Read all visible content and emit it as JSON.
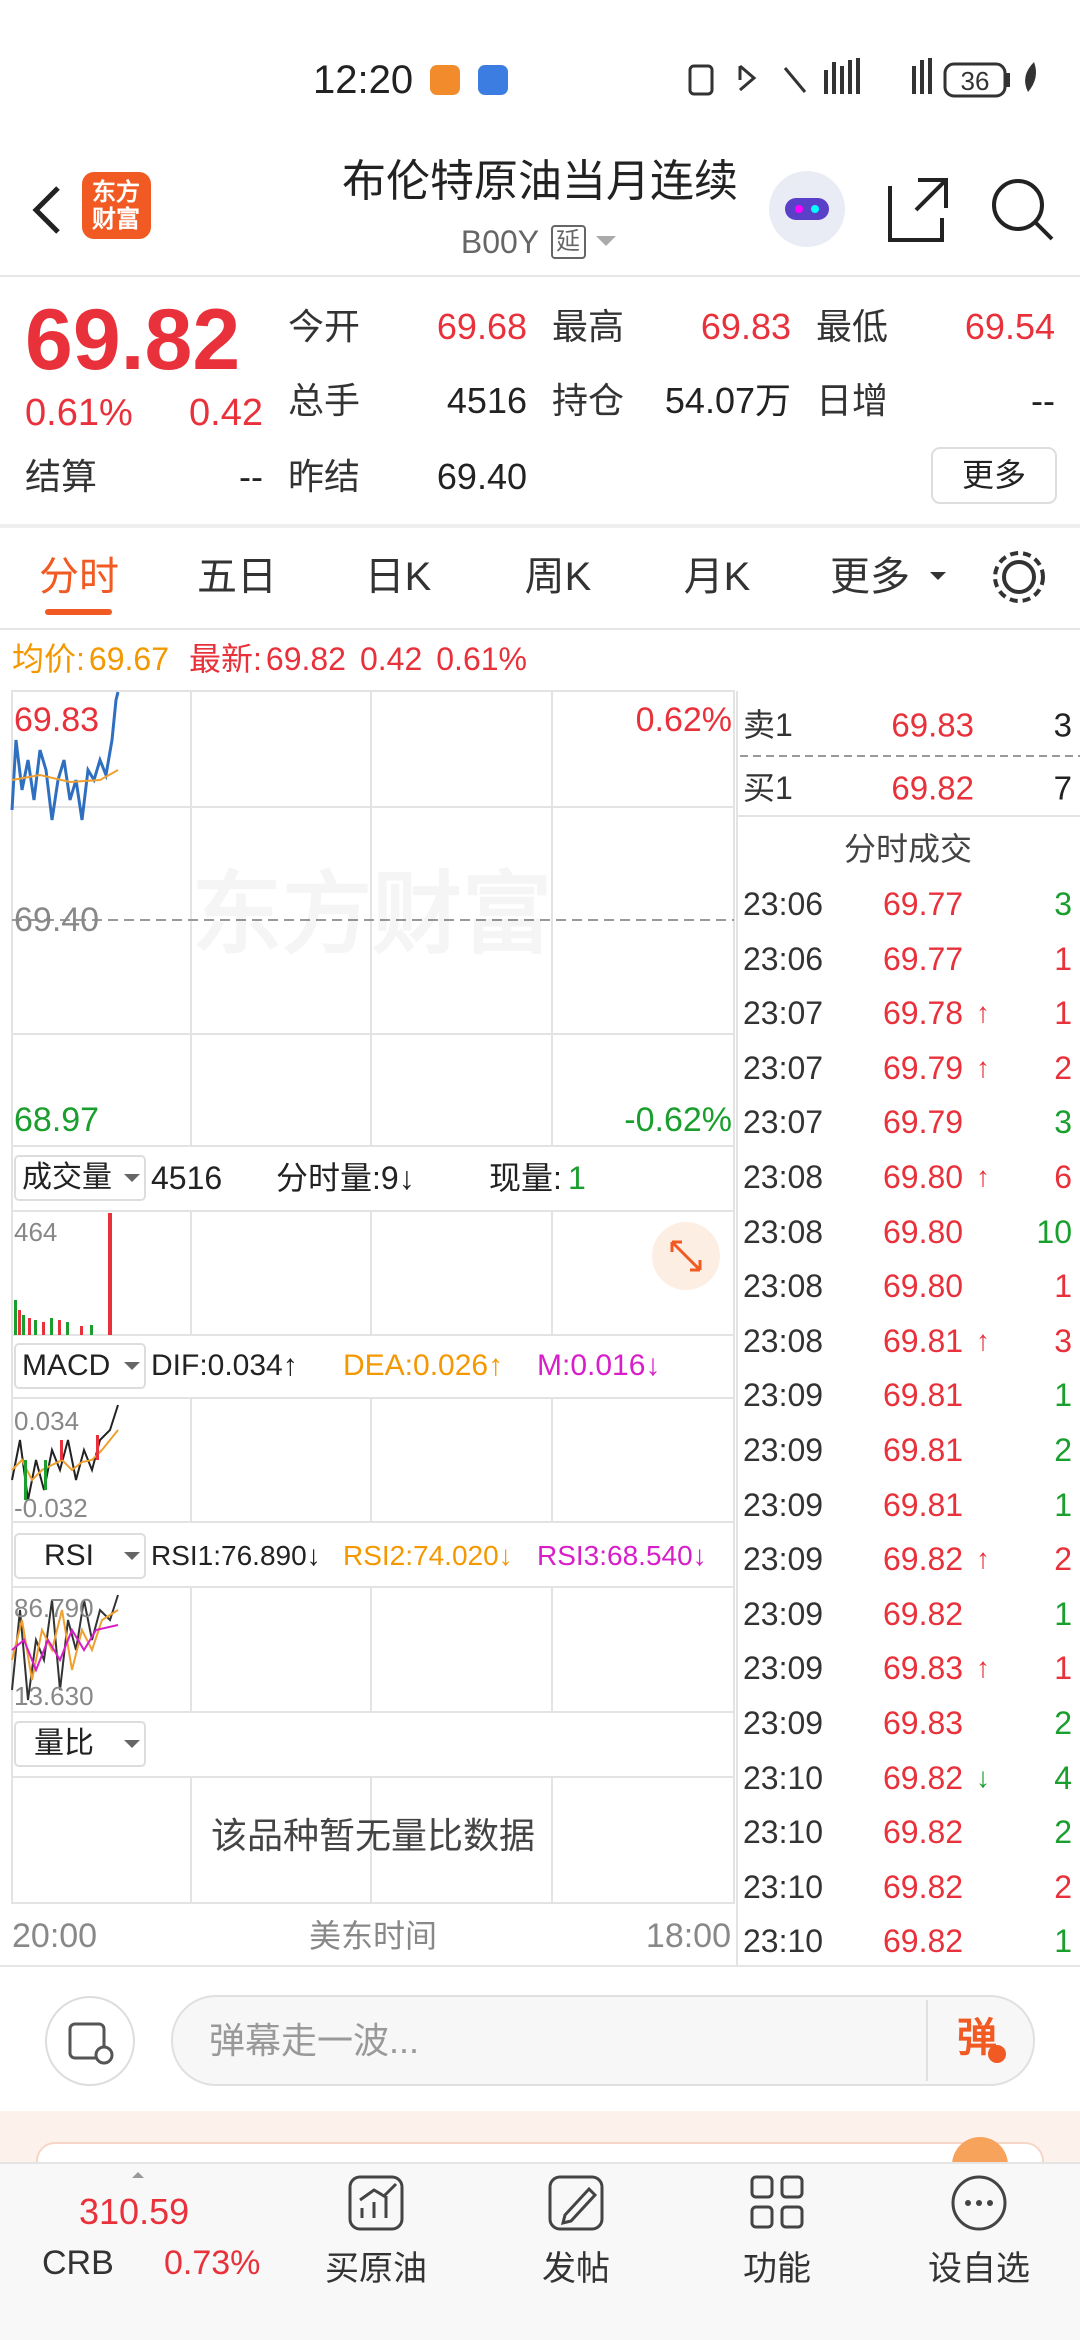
{
  "status_bar": {
    "time": "12:20",
    "battery": "36"
  },
  "header": {
    "logo_line1": "东方",
    "logo_line2": "财富",
    "title": "布伦特原油当月连续",
    "code": "B00Y",
    "tag": "延"
  },
  "quote": {
    "price": "69.82",
    "change_pct": "0.61%",
    "change": "0.42",
    "fields": [
      {
        "label": "今开",
        "value": "69.68",
        "color": "#e8313a"
      },
      {
        "label": "最高",
        "value": "69.83",
        "color": "#e8313a"
      },
      {
        "label": "最低",
        "value": "69.54",
        "color": "#e8313a"
      },
      {
        "label": "总手",
        "value": "4516",
        "color": "#222222"
      },
      {
        "label": "持仓",
        "value": "54.07万",
        "color": "#222222"
      },
      {
        "label": "日增",
        "value": "--",
        "color": "#222222"
      },
      {
        "label": "结算",
        "value": "--",
        "color": "#222222"
      },
      {
        "label": "昨结",
        "value": "69.40",
        "color": "#222222"
      }
    ],
    "more_button": "更多"
  },
  "tabs": [
    "分时",
    "五日",
    "日K",
    "周K",
    "月K",
    "更多"
  ],
  "info_line": {
    "avg_label": "均价:",
    "avg": "69.67",
    "latest_label": "最新:",
    "latest": "69.82",
    "change": "0.42",
    "pct": "0.61%"
  },
  "chart": {
    "y_top": "69.83",
    "y_mid": "69.40",
    "y_bottom": "68.97",
    "pct_top": "0.62%",
    "pct_bottom": "-0.62%",
    "watermark": "东方财富"
  },
  "volume": {
    "selector": "成交量",
    "total": "4516",
    "tick_volume": "分时量:9↓",
    "current_label": "现量:",
    "current": "1",
    "max": "464"
  },
  "macd": {
    "selector": "MACD",
    "dif": "DIF:0.034↑",
    "dea": "DEA:0.026↑",
    "m": "M:0.016↓",
    "top": "0.034",
    "bottom": "-0.032"
  },
  "rsi": {
    "selector": "RSI",
    "rsi1": "RSI1:76.890↓",
    "rsi2": "RSI2:74.020↓",
    "rsi3": "RSI3:68.540↓",
    "top": "86.790",
    "bottom": "13.630"
  },
  "ratio": {
    "selector": "量比",
    "empty": "该品种暂无量比数据"
  },
  "x_axis": {
    "start": "20:00",
    "mid": "美东时间",
    "end": "18:00"
  },
  "order_book": [
    {
      "label": "卖1",
      "price": "69.83",
      "qty": "3"
    },
    {
      "label": "买1",
      "price": "69.82",
      "qty": "7"
    }
  ],
  "trades_title": "分时成交",
  "trades": [
    {
      "time": "23:06",
      "price": "69.77",
      "qty": "3",
      "qty_color": "#1a9e2e"
    },
    {
      "time": "23:06",
      "price": "69.77",
      "qty": "1",
      "qty_color": "#e8313a"
    },
    {
      "time": "23:07",
      "price": "69.78",
      "arrow": "↑",
      "qty": "1",
      "qty_color": "#e8313a"
    },
    {
      "time": "23:07",
      "price": "69.79",
      "arrow": "↑",
      "qty": "2",
      "qty_color": "#e8313a"
    },
    {
      "time": "23:07",
      "price": "69.79",
      "qty": "3",
      "qty_color": "#1a9e2e"
    },
    {
      "time": "23:08",
      "price": "69.80",
      "arrow": "↑",
      "qty": "6",
      "qty_color": "#e8313a"
    },
    {
      "time": "23:08",
      "price": "69.80",
      "qty": "10",
      "qty_color": "#1a9e2e"
    },
    {
      "time": "23:08",
      "price": "69.80",
      "qty": "1",
      "qty_color": "#e8313a"
    },
    {
      "time": "23:08",
      "price": "69.81",
      "arrow": "↑",
      "qty": "3",
      "qty_color": "#e8313a"
    },
    {
      "time": "23:09",
      "price": "69.81",
      "qty": "1",
      "qty_color": "#1a9e2e"
    },
    {
      "time": "23:09",
      "price": "69.81",
      "qty": "2",
      "qty_color": "#1a9e2e"
    },
    {
      "time": "23:09",
      "price": "69.81",
      "qty": "1",
      "qty_color": "#1a9e2e"
    },
    {
      "time": "23:09",
      "price": "69.82",
      "arrow": "↑",
      "qty": "2",
      "qty_color": "#e8313a"
    },
    {
      "time": "23:09",
      "price": "69.82",
      "qty": "1",
      "qty_color": "#1a9e2e"
    },
    {
      "time": "23:09",
      "price": "69.83",
      "arrow": "↑",
      "qty": "1",
      "qty_color": "#e8313a"
    },
    {
      "time": "23:09",
      "price": "69.83",
      "qty": "2",
      "qty_color": "#1a9e2e"
    },
    {
      "time": "23:10",
      "price": "69.82",
      "arrow": "↓",
      "qty": "4",
      "qty_color": "#1a9e2e"
    },
    {
      "time": "23:10",
      "price": "69.82",
      "qty": "2",
      "qty_color": "#1a9e2e"
    },
    {
      "time": "23:10",
      "price": "69.82",
      "qty": "2",
      "qty_color": "#e8313a"
    },
    {
      "time": "23:10",
      "price": "69.82",
      "qty": "1",
      "qty_color": "#1a9e2e"
    }
  ],
  "comment_bar": {
    "placeholder": "弹幕走一波...",
    "button": "弹"
  },
  "bottom_nav": {
    "index_value": "310.59",
    "index_name": "CRB",
    "index_pct": "0.73%",
    "items": [
      "买原油",
      "发帖",
      "功能",
      "设自选"
    ]
  }
}
